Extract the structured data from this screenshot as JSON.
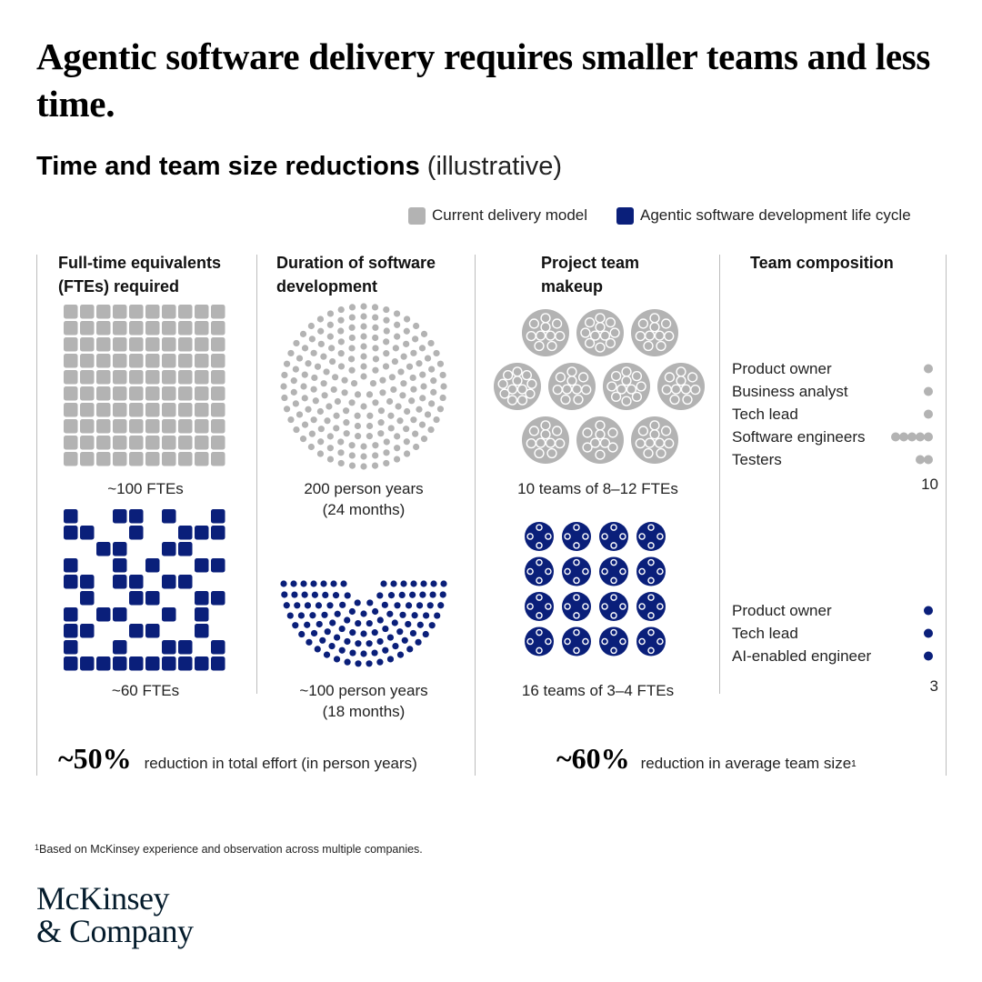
{
  "title": "Agentic software delivery requires smaller teams and less time.",
  "subtitle_main": "Time and team size reductions",
  "subtitle_note": "(illustrative)",
  "colors": {
    "current": "#b3b3b3",
    "agentic": "#0a1f7a",
    "divider": "#bdbdbd"
  },
  "legend": [
    {
      "label": "Current delivery model",
      "color": "#b3b3b3"
    },
    {
      "label": "Agentic software development life cycle",
      "color": "#0a1f7a"
    }
  ],
  "columns": {
    "fte": {
      "heading_1": "Full-time equivalents",
      "heading_2": "(FTEs) required",
      "current_label": "~100 FTEs",
      "agentic_label": "~60 FTEs"
    },
    "duration": {
      "heading_1": "Duration of software",
      "heading_2": "development",
      "current_label_1": "200 person years",
      "current_label_2": "(24 months)",
      "agentic_label_1": "~100 person years",
      "agentic_label_2": "(18 months)"
    },
    "makeup": {
      "heading_1": "Project team",
      "heading_2": "makeup",
      "current_label": "10 teams of 8–12 FTEs",
      "agentic_label": "16 teams of 3–4 FTEs"
    },
    "composition": {
      "heading": "Team composition",
      "current_roles": [
        "Product owner",
        "Business analyst",
        "Tech lead",
        "Software engineers",
        "Testers"
      ],
      "current_total": "10",
      "agentic_roles": [
        "Product owner",
        "Tech lead",
        "AI-enabled engineer"
      ],
      "agentic_total": "3"
    }
  },
  "summary": {
    "effort_value": "~50%",
    "effort_text": "reduction in total effort (in person years)",
    "team_value": "~60%",
    "team_text": "reduction in average team size",
    "team_note_mark": "1"
  },
  "footnote": {
    "mark": "1",
    "text": "Based on McKinsey experience and observation across multiple companies."
  },
  "logo": {
    "line1": "McKinsey",
    "line2": "& Company"
  },
  "chart_data": {
    "type": "table",
    "series": [
      {
        "name": "Current delivery model",
        "fte": 100,
        "person_years": 200,
        "months": 24,
        "teams": 10,
        "team_size": "8–12",
        "roles": [
          {
            "role": "Product owner",
            "count": 1
          },
          {
            "role": "Business analyst",
            "count": 1
          },
          {
            "role": "Tech lead",
            "count": 1
          },
          {
            "role": "Software engineers",
            "count": 5
          },
          {
            "role": "Testers",
            "count": 2
          }
        ],
        "team_total": 10
      },
      {
        "name": "Agentic software development life cycle",
        "fte": 60,
        "person_years": 100,
        "months": 18,
        "teams": 16,
        "team_size": "3–4",
        "roles": [
          {
            "role": "Product owner",
            "count": 1
          },
          {
            "role": "Tech lead",
            "count": 1
          },
          {
            "role": "AI-enabled engineer",
            "count": 1
          }
        ],
        "team_total": 3
      }
    ],
    "reductions": {
      "total_effort_percent": 50,
      "average_team_size_percent": 60
    }
  }
}
